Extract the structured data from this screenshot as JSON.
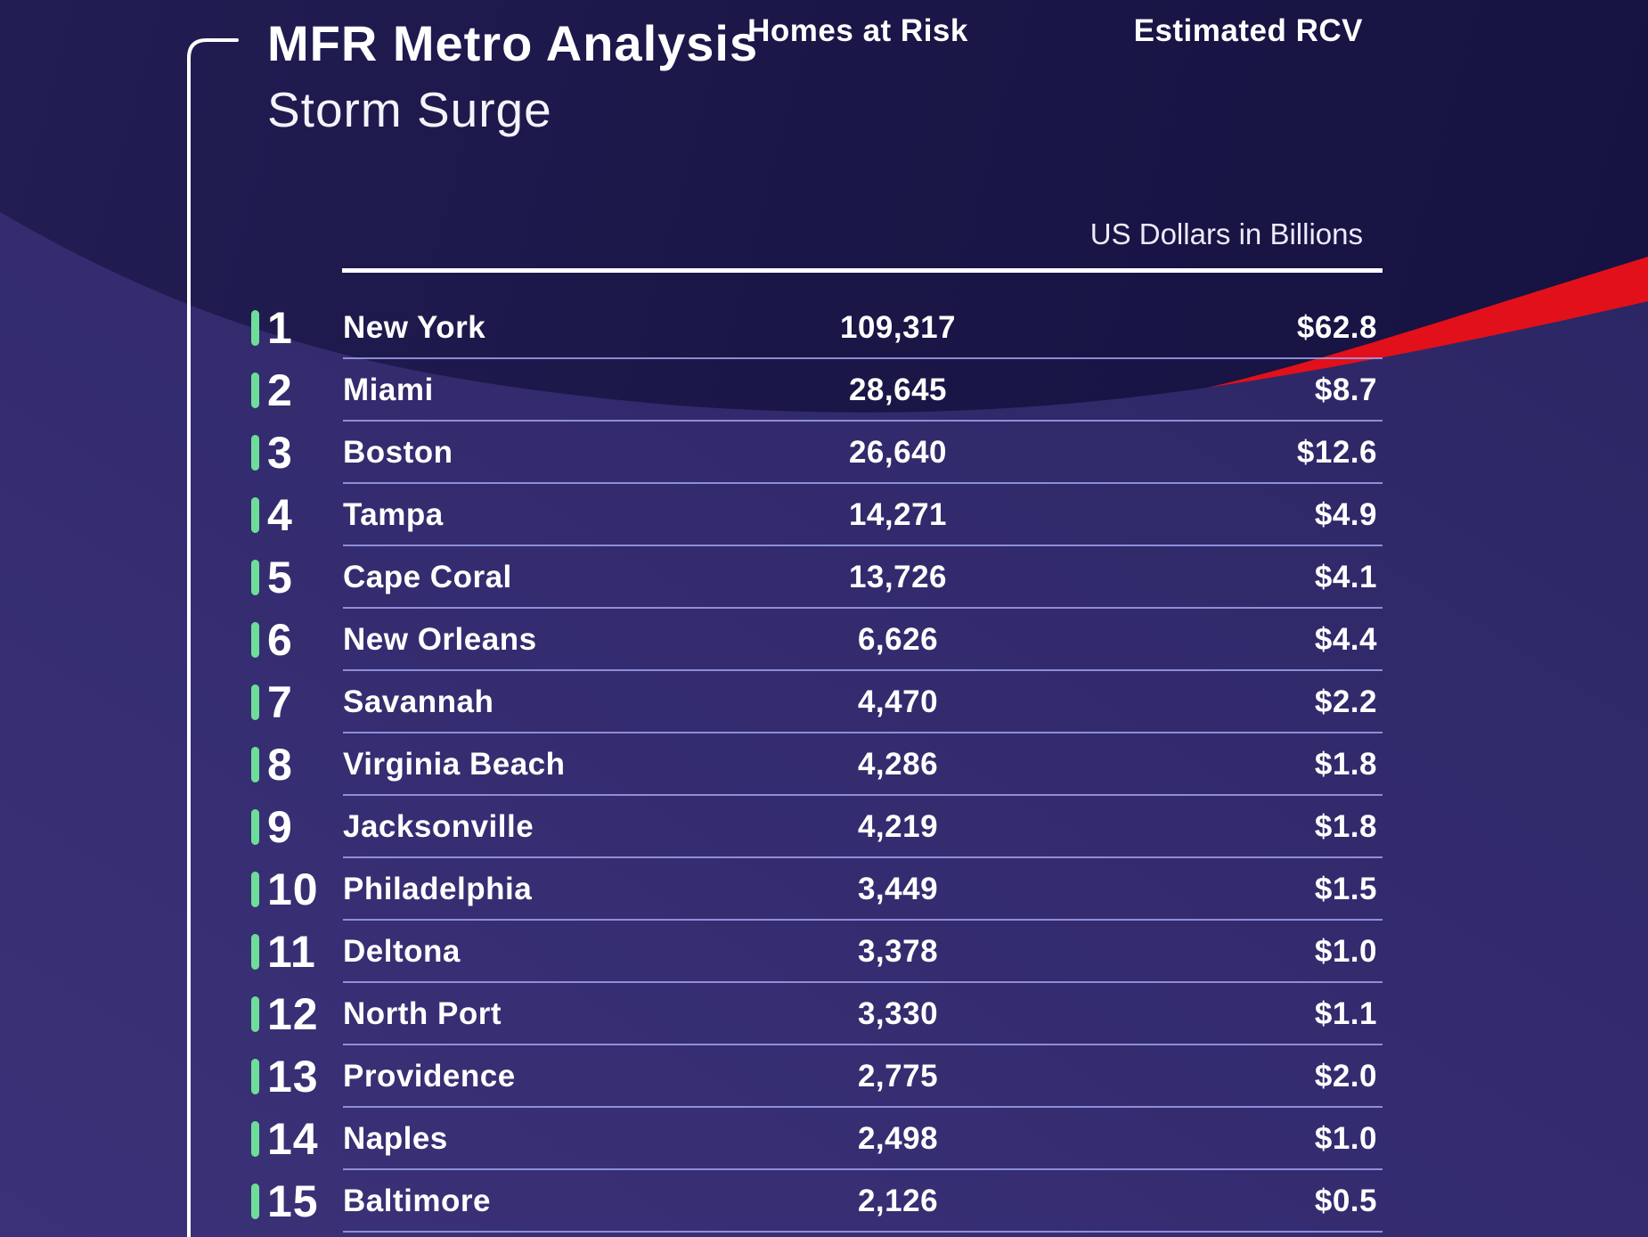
{
  "page": {
    "title": "MFR Metro Analysis",
    "subtitle": "Storm Surge"
  },
  "table": {
    "col_homes": "Homes at Risk",
    "col_rcv": "Estimated RCV",
    "col_rcv_sub": "US Dollars in Billions",
    "rows": [
      {
        "rank": "1",
        "city": "New York",
        "homes": "109,317",
        "rcv": "$62.8"
      },
      {
        "rank": "2",
        "city": "Miami",
        "homes": "28,645",
        "rcv": "$8.7"
      },
      {
        "rank": "3",
        "city": "Boston",
        "homes": "26,640",
        "rcv": "$12.6"
      },
      {
        "rank": "4",
        "city": "Tampa",
        "homes": "14,271",
        "rcv": "$4.9"
      },
      {
        "rank": "5",
        "city": "Cape Coral",
        "homes": "13,726",
        "rcv": "$4.1"
      },
      {
        "rank": "6",
        "city": "New Orleans",
        "homes": "6,626",
        "rcv": "$4.4"
      },
      {
        "rank": "7",
        "city": "Savannah",
        "homes": "4,470",
        "rcv": "$2.2"
      },
      {
        "rank": "8",
        "city": "Virginia Beach",
        "homes": "4,286",
        "rcv": "$1.8"
      },
      {
        "rank": "9",
        "city": "Jacksonville",
        "homes": "4,219",
        "rcv": "$1.8"
      },
      {
        "rank": "10",
        "city": "Philadelphia",
        "homes": "3,449",
        "rcv": "$1.5"
      },
      {
        "rank": "11",
        "city": "Deltona",
        "homes": "3,378",
        "rcv": "$1.0"
      },
      {
        "rank": "12",
        "city": "North Port",
        "homes": "3,330",
        "rcv": "$1.1"
      },
      {
        "rank": "13",
        "city": "Providence",
        "homes": "2,775",
        "rcv": "$2.0"
      },
      {
        "rank": "14",
        "city": "Naples",
        "homes": "2,498",
        "rcv": "$1.0"
      },
      {
        "rank": "15",
        "city": "Baltimore",
        "homes": "2,126",
        "rcv": "$0.5"
      }
    ]
  },
  "colors": {
    "accent_green": "#6fdd9a",
    "swoosh_red": "#e2101a",
    "navy": "#1a1646",
    "purple": "#322a6c",
    "separator": "#9da0eb",
    "text": "#ffffff"
  },
  "chart_data": {
    "type": "table",
    "title": "MFR Metro Analysis — Storm Surge",
    "columns": [
      "Rank",
      "Metro",
      "Homes at Risk",
      "Estimated RCV (US Dollars in Billions)"
    ],
    "rows": [
      [
        1,
        "New York",
        109317,
        62.8
      ],
      [
        2,
        "Miami",
        28645,
        8.7
      ],
      [
        3,
        "Boston",
        26640,
        12.6
      ],
      [
        4,
        "Tampa",
        14271,
        4.9
      ],
      [
        5,
        "Cape Coral",
        13726,
        4.1
      ],
      [
        6,
        "New Orleans",
        6626,
        4.4
      ],
      [
        7,
        "Savannah",
        4470,
        2.2
      ],
      [
        8,
        "Virginia Beach",
        4286,
        1.8
      ],
      [
        9,
        "Jacksonville",
        4219,
        1.8
      ],
      [
        10,
        "Philadelphia",
        3449,
        1.5
      ],
      [
        11,
        "Deltona",
        3378,
        1.0
      ],
      [
        12,
        "North Port",
        3330,
        1.1
      ],
      [
        13,
        "Providence",
        2775,
        2.0
      ],
      [
        14,
        "Naples",
        2498,
        1.0
      ],
      [
        15,
        "Baltimore",
        2126,
        0.5
      ]
    ]
  }
}
